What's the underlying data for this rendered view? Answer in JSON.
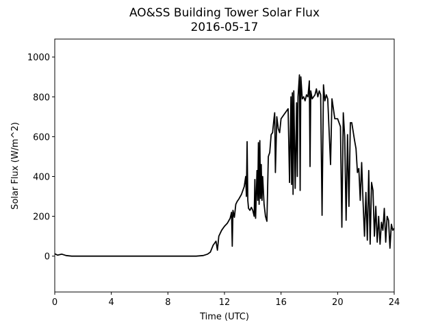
{
  "chart_data": {
    "type": "line",
    "title": "AO&SS Building Tower Solar Flux",
    "subtitle": "2016-05-17",
    "x_label": "Time (UTC)",
    "y_label": "Solar Flux (W/m^2)",
    "xlim": [
      0,
      24
    ],
    "xticks": [
      0,
      4,
      8,
      12,
      16,
      20,
      24
    ],
    "ylim": [
      -180,
      1090
    ],
    "yticks": [
      0,
      200,
      400,
      600,
      800,
      1000
    ],
    "series": [
      {
        "name": "Solar Flux",
        "color": "#000000",
        "x": [
          0,
          0.2,
          0.5,
          0.8,
          1.2,
          2,
          4,
          6,
          8,
          10,
          10.5,
          10.8,
          11,
          11.2,
          11.4,
          11.5,
          11.6,
          11.8,
          12,
          12.2,
          12.4,
          12.5,
          12.55,
          12.6,
          12.7,
          12.8,
          12.9,
          13,
          13.2,
          13.4,
          13.5,
          13.55,
          13.6,
          13.65,
          13.7,
          13.8,
          13.9,
          14,
          14.1,
          14.15,
          14.2,
          14.3,
          14.35,
          14.4,
          14.45,
          14.5,
          14.55,
          14.6,
          14.65,
          14.7,
          14.8,
          14.9,
          15,
          15.1,
          15.2,
          15.3,
          15.4,
          15.5,
          15.55,
          15.6,
          15.7,
          15.8,
          15.9,
          16,
          16.2,
          16.5,
          16.6,
          16.7,
          16.75,
          16.8,
          16.85,
          16.9,
          17,
          17.1,
          17.15,
          17.2,
          17.3,
          17.35,
          17.4,
          17.5,
          17.6,
          17.7,
          17.8,
          17.9,
          18,
          18.05,
          18.1,
          18.2,
          18.3,
          18.4,
          18.5,
          18.6,
          18.7,
          18.8,
          18.9,
          19,
          19.1,
          19.2,
          19.3,
          19.5,
          19.6,
          19.8,
          20,
          20.2,
          20.3,
          20.4,
          20.5,
          20.6,
          20.7,
          20.8,
          20.9,
          21,
          21.2,
          21.3,
          21.4,
          21.5,
          21.6,
          21.7,
          21.8,
          21.9,
          22,
          22.1,
          22.2,
          22.3,
          22.4,
          22.5,
          22.6,
          22.7,
          22.8,
          22.9,
          23,
          23.1,
          23.2,
          23.3,
          23.4,
          23.5,
          23.6,
          23.7,
          23.8,
          23.9,
          24
        ],
        "values": [
          12,
          5,
          10,
          3,
          0,
          0,
          0,
          0,
          0,
          0,
          3,
          10,
          20,
          55,
          75,
          30,
          100,
          130,
          150,
          165,
          190,
          220,
          50,
          230,
          195,
          260,
          275,
          285,
          310,
          350,
          400,
          300,
          575,
          280,
          240,
          230,
          245,
          230,
          200,
          385,
          190,
          430,
          280,
          570,
          260,
          580,
          290,
          460,
          280,
          400,
          260,
          200,
          175,
          500,
          520,
          610,
          620,
          690,
          720,
          420,
          700,
          640,
          620,
          690,
          710,
          740,
          370,
          800,
          360,
          820,
          310,
          830,
          340,
          770,
          400,
          800,
          910,
          330,
          900,
          790,
          800,
          780,
          810,
          800,
          880,
          450,
          830,
          790,
          800,
          810,
          840,
          800,
          830,
          810,
          205,
          860,
          780,
          810,
          790,
          460,
          790,
          690,
          690,
          650,
          145,
          720,
          600,
          180,
          610,
          250,
          670,
          670,
          580,
          540,
          420,
          440,
          280,
          470,
          270,
          100,
          320,
          80,
          430,
          60,
          370,
          330,
          100,
          250,
          70,
          200,
          60,
          170,
          130,
          240,
          70,
          200,
          180,
          40,
          160,
          130,
          140
        ]
      }
    ]
  }
}
